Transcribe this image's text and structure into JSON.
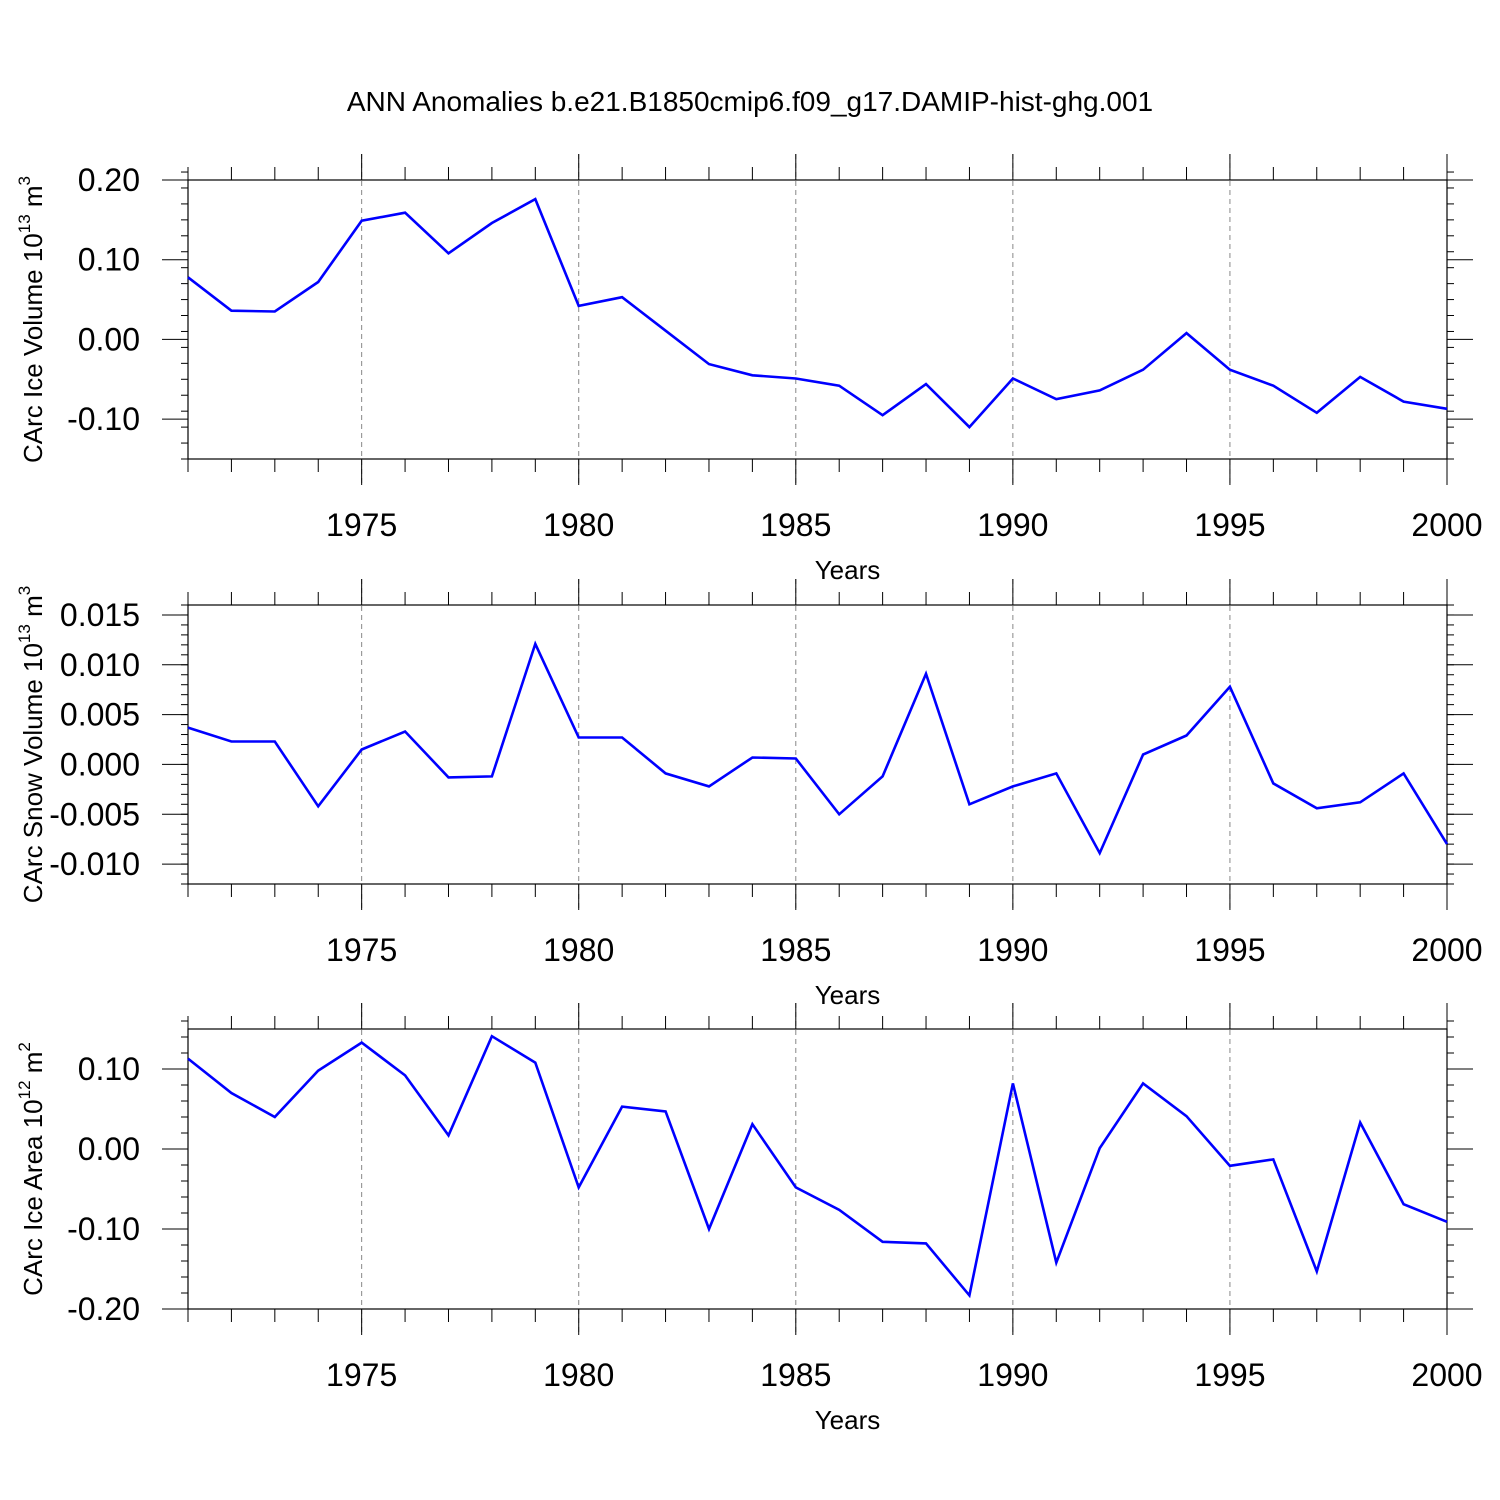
{
  "title": "ANN Anomalies b.e21.B1850cmip6.f09_g17.DAMIP-hist-ghg.001",
  "colors": {
    "line": "#0000ff",
    "axis": "#000000",
    "grid": "#888888"
  },
  "chart_data": [
    {
      "type": "line",
      "title": "",
      "xlabel": "Years",
      "ylabel": "CArc Ice Volume 10",
      "ylabel_exp": "13",
      "ylabel_unit": "m",
      "ylabel_unit_exp": "3",
      "x": [
        1971,
        1972,
        1973,
        1974,
        1975,
        1976,
        1977,
        1978,
        1979,
        1980,
        1981,
        1982,
        1983,
        1984,
        1985,
        1986,
        1987,
        1988,
        1989,
        1990,
        1991,
        1992,
        1993,
        1994,
        1995,
        1996,
        1997,
        1998,
        1999,
        2000
      ],
      "values": [
        0.078,
        0.036,
        0.035,
        0.072,
        0.149,
        0.159,
        0.108,
        0.146,
        0.176,
        0.042,
        0.053,
        0.011,
        -0.031,
        -0.045,
        -0.049,
        -0.058,
        -0.095,
        -0.056,
        -0.11,
        -0.049,
        -0.075,
        -0.064,
        -0.038,
        0.008,
        -0.038,
        -0.058,
        -0.092,
        -0.047,
        -0.078,
        -0.087
      ],
      "xlim": [
        1971,
        2000
      ],
      "ylim": [
        -0.15,
        0.2
      ],
      "yticks": [
        -0.1,
        0.0,
        0.1,
        0.2
      ],
      "yticklabels": [
        "-0.10",
        "0.00",
        "0.10",
        "0.20"
      ],
      "yminor": 0.02,
      "xticks": [
        1975,
        1980,
        1985,
        1990,
        1995,
        2000
      ],
      "xticklabels": [
        "1975",
        "1980",
        "1985",
        "1990",
        "1995",
        "2000"
      ],
      "grid": "vertical dashed at major x ticks"
    },
    {
      "type": "line",
      "title": "",
      "xlabel": "Years",
      "ylabel": "CArc Snow Volume 10",
      "ylabel_exp": "13",
      "ylabel_unit": "m",
      "ylabel_unit_exp": "3",
      "x": [
        1971,
        1972,
        1973,
        1974,
        1975,
        1976,
        1977,
        1978,
        1979,
        1980,
        1981,
        1982,
        1983,
        1984,
        1985,
        1986,
        1987,
        1988,
        1989,
        1990,
        1991,
        1992,
        1993,
        1994,
        1995,
        1996,
        1997,
        1998,
        1999,
        2000
      ],
      "values": [
        0.0037,
        0.0023,
        0.0023,
        -0.0042,
        0.0015,
        0.0033,
        -0.0013,
        -0.0012,
        0.0121,
        0.0027,
        0.0027,
        -0.0009,
        -0.0022,
        0.0007,
        0.0006,
        -0.005,
        -0.0012,
        0.0091,
        -0.004,
        -0.0022,
        -0.0009,
        -0.0089,
        0.001,
        0.0029,
        0.0078,
        -0.0019,
        -0.0044,
        -0.0038,
        -0.0009,
        -0.008
      ],
      "xlim": [
        1971,
        2000
      ],
      "ylim": [
        -0.012,
        0.016
      ],
      "yticks": [
        -0.01,
        -0.005,
        0.0,
        0.005,
        0.01,
        0.015
      ],
      "yticklabels": [
        "-0.010",
        "-0.005",
        "0.000",
        "0.005",
        "0.010",
        "0.015"
      ],
      "yminor": 0.001,
      "xticks": [
        1975,
        1980,
        1985,
        1990,
        1995,
        2000
      ],
      "xticklabels": [
        "1975",
        "1980",
        "1985",
        "1990",
        "1995",
        "2000"
      ],
      "grid": "vertical dashed at major x ticks"
    },
    {
      "type": "line",
      "title": "",
      "xlabel": "Years",
      "ylabel": "CArc Ice Area 10",
      "ylabel_exp": "12",
      "ylabel_unit": "m",
      "ylabel_unit_exp": "2",
      "x": [
        1971,
        1972,
        1973,
        1974,
        1975,
        1976,
        1977,
        1978,
        1979,
        1980,
        1981,
        1982,
        1983,
        1984,
        1985,
        1986,
        1987,
        1988,
        1989,
        1990,
        1991,
        1992,
        1993,
        1994,
        1995,
        1996,
        1997,
        1998,
        1999,
        2000
      ],
      "values": [
        0.113,
        0.07,
        0.04,
        0.098,
        0.133,
        0.092,
        0.017,
        0.141,
        0.108,
        -0.048,
        0.053,
        0.047,
        -0.1,
        0.031,
        -0.048,
        -0.076,
        -0.116,
        -0.118,
        -0.183,
        0.082,
        -0.142,
        0.001,
        0.082,
        0.041,
        -0.021,
        -0.013,
        -0.153,
        0.033,
        -0.069,
        -0.091
      ],
      "xlim": [
        1971,
        2000
      ],
      "ylim": [
        -0.2,
        0.15
      ],
      "yticks": [
        -0.2,
        -0.1,
        0.0,
        0.1
      ],
      "yticklabels": [
        "-0.20",
        "-0.10",
        "0.00",
        "0.10"
      ],
      "yminor": 0.02,
      "xticks": [
        1975,
        1980,
        1985,
        1990,
        1995,
        2000
      ],
      "xticklabels": [
        "1975",
        "1980",
        "1985",
        "1990",
        "1995",
        "2000"
      ],
      "grid": "vertical dashed at major x ticks"
    }
  ]
}
